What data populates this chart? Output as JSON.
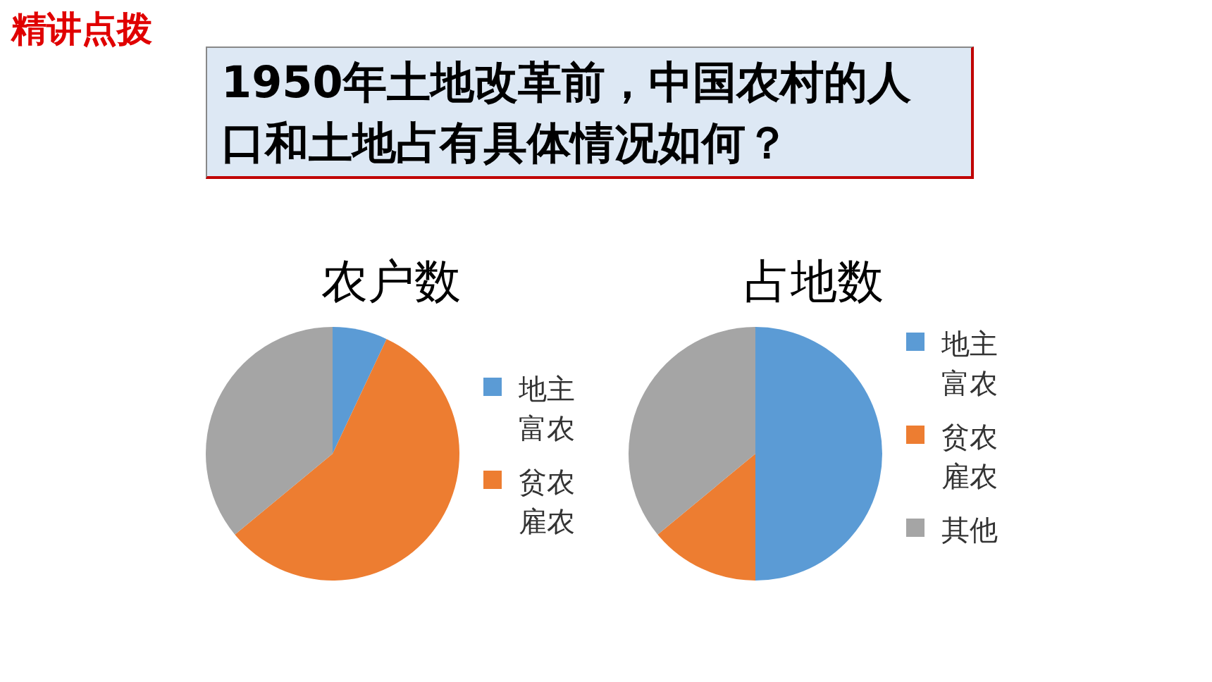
{
  "chart_data": [
    {
      "type": "pie",
      "title": "农户数",
      "categories": [
        "地主富农",
        "贫农雇农",
        null
      ],
      "values": [
        7,
        57,
        36
      ],
      "colors": [
        "#5b9bd5",
        "#ed7d31",
        "#a5a5a5"
      ],
      "legend": "right",
      "annotations": [
        "精讲点拨",
        "1950年土地改革前，中国农村的人口和土地占有具体情况如何？"
      ]
    },
    {
      "type": "pie",
      "title": "占地数",
      "categories": [
        "地主富农",
        "贫农雇农",
        "其他"
      ],
      "values": [
        50,
        14,
        36
      ],
      "colors": [
        "#5b9bd5",
        "#ed7d31",
        "#a5a5a5"
      ],
      "legend": "right"
    }
  ]
}
